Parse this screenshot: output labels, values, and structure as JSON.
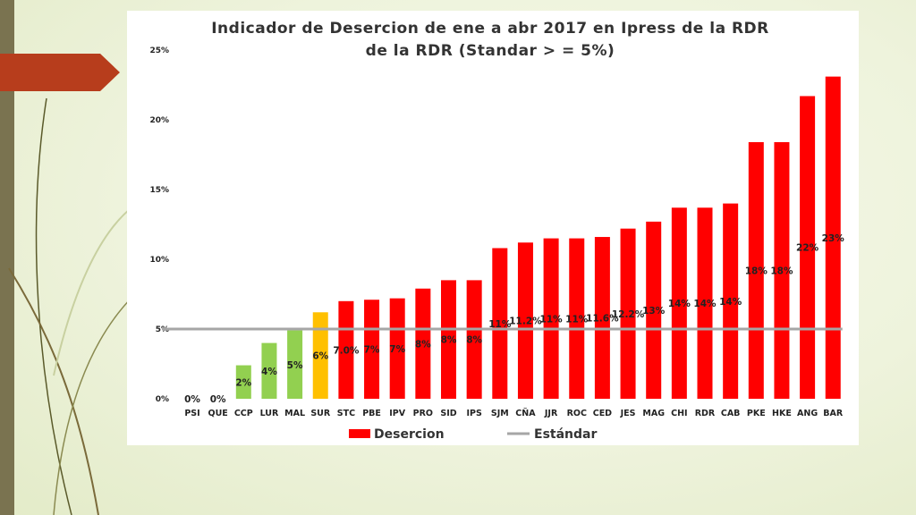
{
  "chart_data": {
    "type": "bar",
    "title_line1": "Indicador de Desercion de ene a abr 2017 en Ipress de la RDR",
    "title_line2": "de la RDR (Standar > = 5%)",
    "ylim": [
      0,
      25
    ],
    "yticks": [
      "0%",
      "5%",
      "10%",
      "15%",
      "20%",
      "25%"
    ],
    "standard": 5,
    "categories": [
      "PSI",
      "QUE",
      "CCP",
      "LUR",
      "MAL",
      "SUR",
      "STC",
      "PBE",
      "IPV",
      "PRO",
      "SID",
      "IPS",
      "SJM",
      "CÑA",
      "JJR",
      "ROC",
      "CED",
      "JES",
      "MAG",
      "CHI",
      "RDR",
      "CAB",
      "PKE",
      "HKE",
      "ANG",
      "BAR"
    ],
    "values": [
      0,
      0,
      2.4,
      4.0,
      4.9,
      6.2,
      7.0,
      7.1,
      7.2,
      7.9,
      8.5,
      8.5,
      10.8,
      11.2,
      11.5,
      11.5,
      11.6,
      12.2,
      12.7,
      13.7,
      13.7,
      14.0,
      18.4,
      18.4,
      21.7,
      23.1
    ],
    "labels": [
      "0%",
      "0%",
      "2%",
      "4%",
      "5%",
      "6%",
      "7.0%",
      "7%",
      "7%",
      "8%",
      "8%",
      "8%",
      "11%",
      "11.2%",
      "11%",
      "11%",
      "11.6%",
      "12.2%",
      "13%",
      "14%",
      "14%",
      "14%",
      "18%",
      "18%",
      "22%",
      "23%"
    ],
    "colors": [
      "#ff0000",
      "#ff0000",
      "#92d050",
      "#92d050",
      "#92d050",
      "#ffc000",
      "#ff0000",
      "#ff0000",
      "#ff0000",
      "#ff0000",
      "#ff0000",
      "#ff0000",
      "#ff0000",
      "#ff0000",
      "#ff0000",
      "#ff0000",
      "#ff0000",
      "#ff0000",
      "#ff0000",
      "#ff0000",
      "#ff0000",
      "#ff0000",
      "#ff0000",
      "#ff0000",
      "#ff0000",
      "#ff0000"
    ],
    "series": [
      {
        "name": "Desercion",
        "color": "#ff0000"
      },
      {
        "name": "Estándar",
        "color": "#a6a6a6"
      }
    ]
  }
}
